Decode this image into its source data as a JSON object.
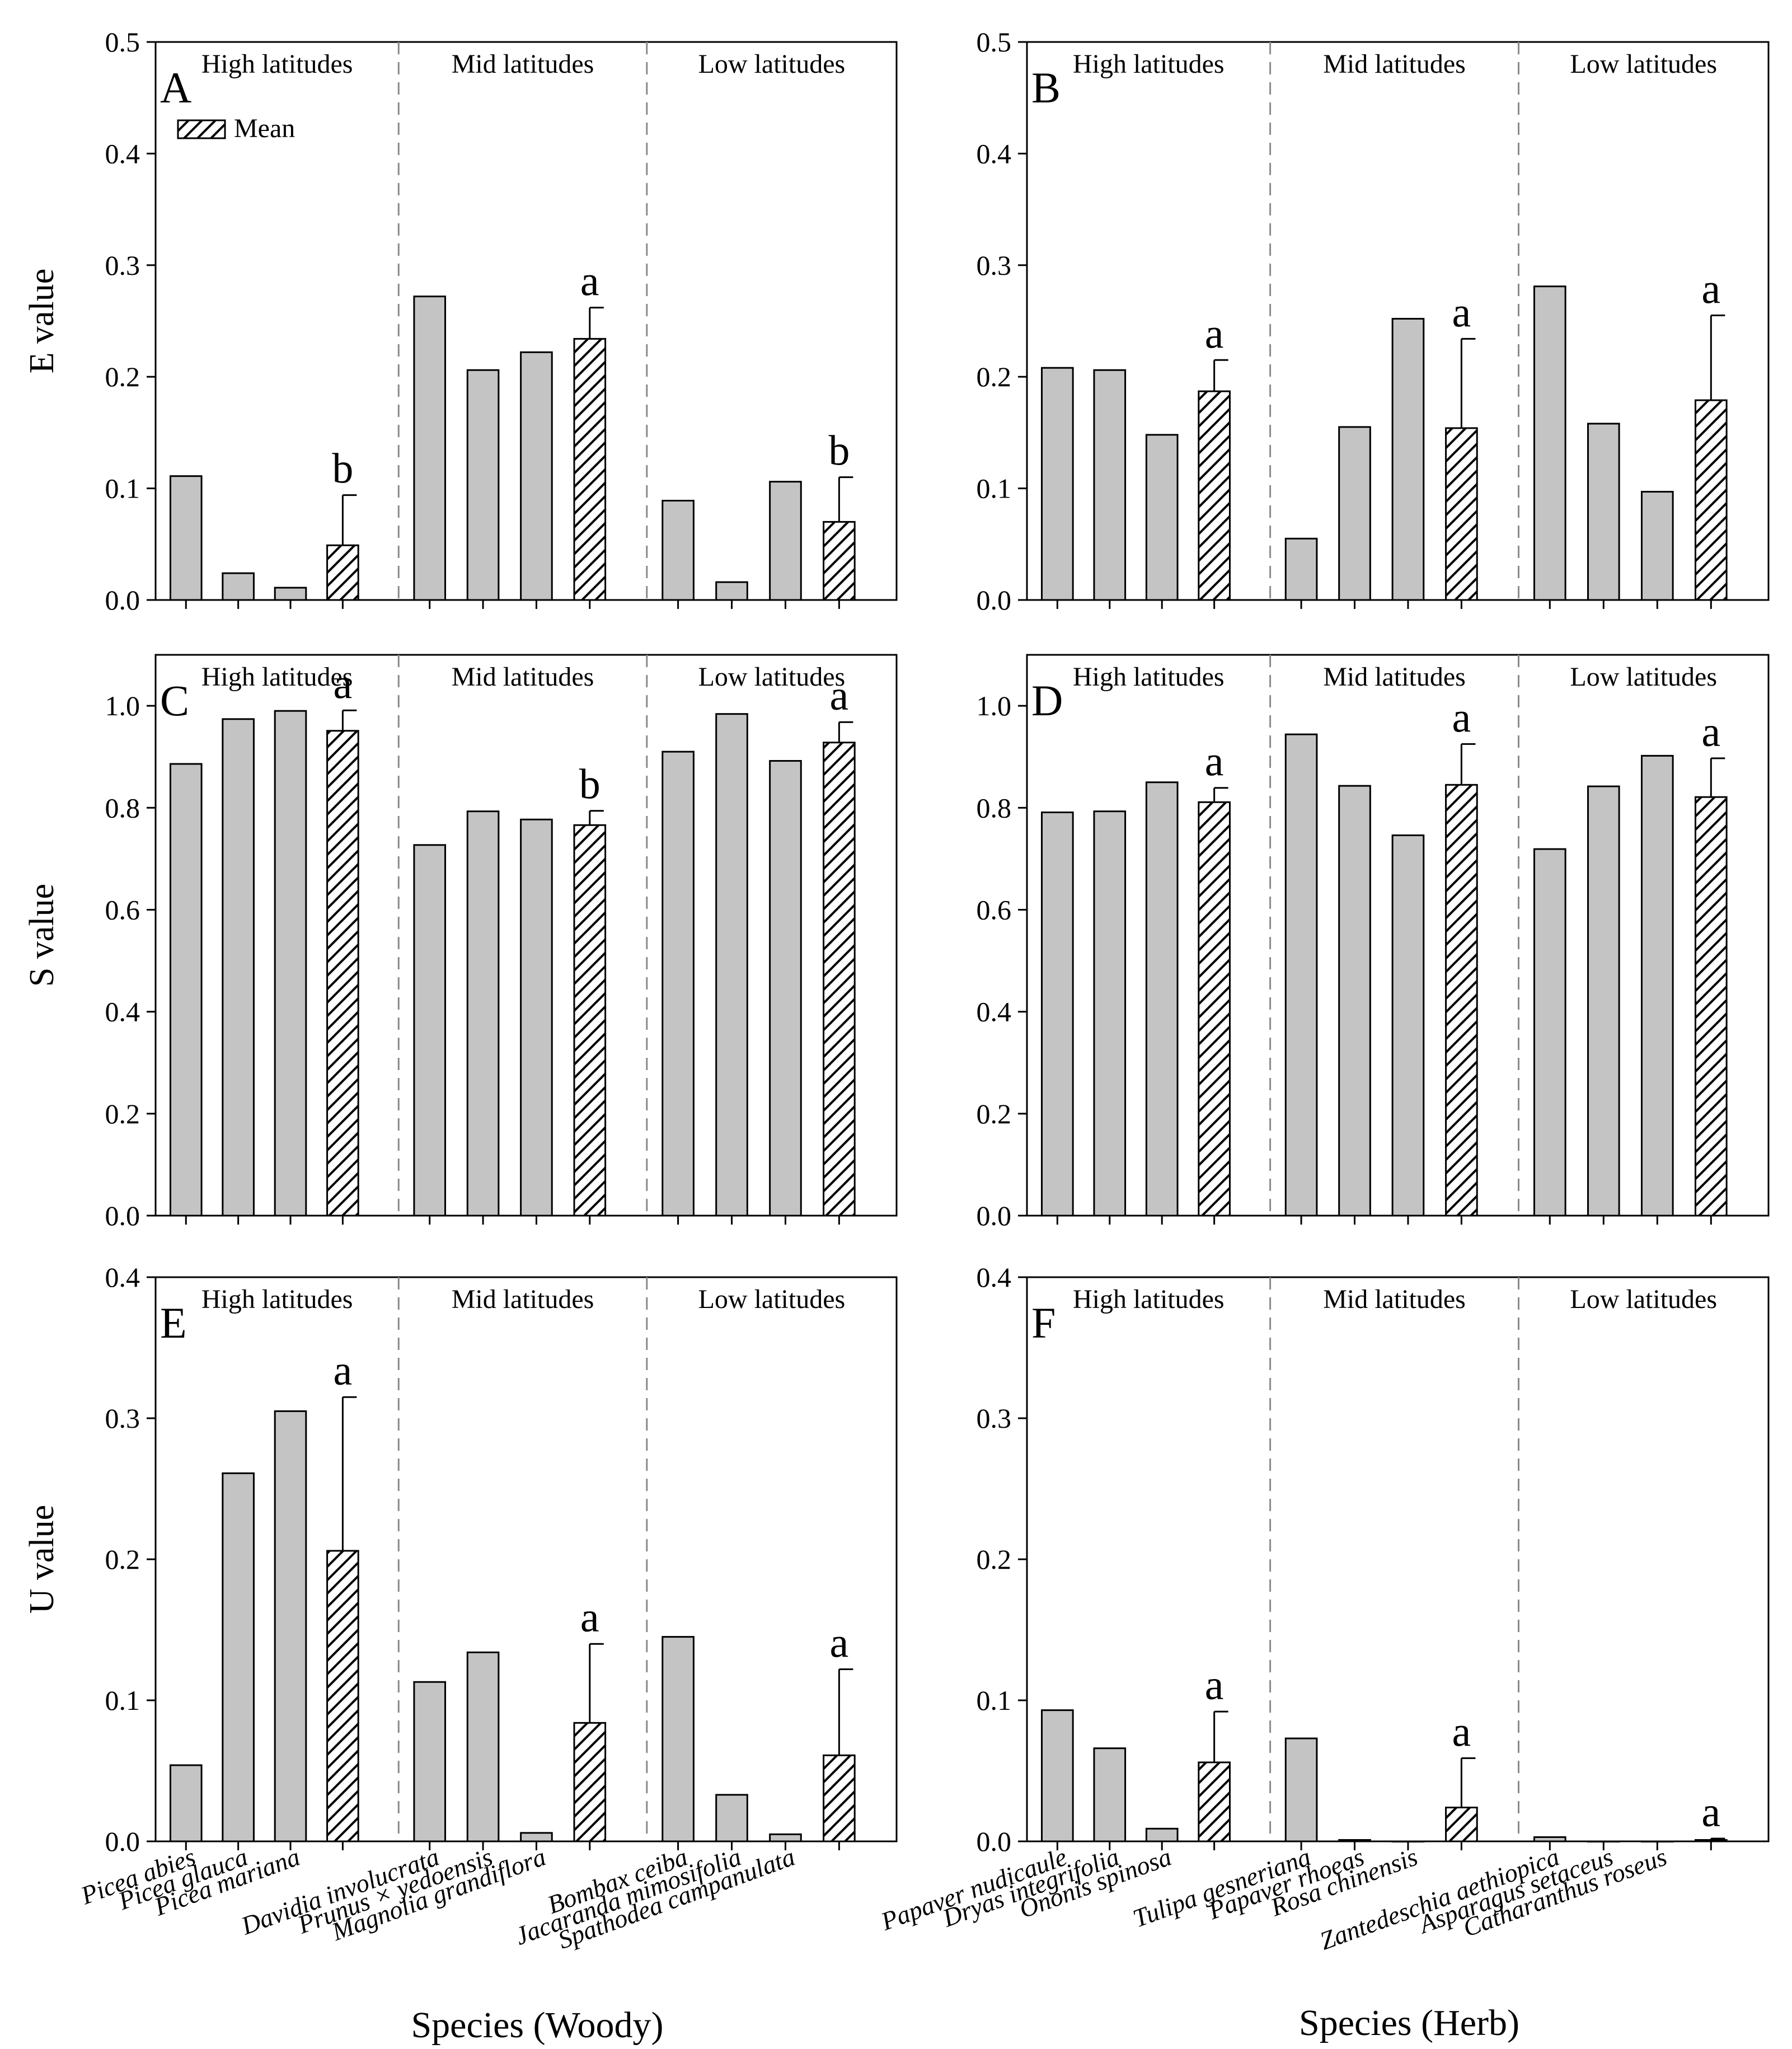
{
  "colors": {
    "bar_fill": "#c4c4c4",
    "mean_fill": "#ffffff",
    "hatch": "#000000",
    "divider": "#8a8a8a"
  },
  "legend_label": "Mean",
  "woody": {
    "xlabel": "Species (Woody)",
    "species": [
      "Picea abies",
      "Picea glauca",
      "Picea mariana",
      "Davidia involucrata",
      "Prunus × yedoensis",
      "Magnolia grandiflora",
      "Bombax ceiba",
      "Jacaranda mimosifolia",
      "Spathodea campanulata"
    ]
  },
  "herb": {
    "xlabel": "Species (Herb)",
    "species": [
      "Papaver nudicaule",
      "Dryas integrifolia",
      "Ononis spinosa",
      "Tulipa gesneriana",
      "Papaver rhoeas",
      "Rosa chinensis",
      "Zantedeschia aethiopica",
      "Asparagus setaceus",
      "Catharanthus roseus"
    ]
  },
  "chart_data": [
    {
      "type": "bar",
      "panel": "A",
      "ylabel": "E value",
      "ylim": [
        0,
        0.5
      ],
      "yticks": [
        "0.0",
        "0.1",
        "0.2",
        "0.3",
        "0.4",
        "0.5"
      ],
      "groups": [
        {
          "name": "High latitudes",
          "values": [
            0.111,
            0.024,
            0.011
          ],
          "mean": 0.049,
          "error": 0.045,
          "letter": "b"
        },
        {
          "name": "Mid latitudes",
          "values": [
            0.272,
            0.206,
            0.222
          ],
          "mean": 0.234,
          "error": 0.028,
          "letter": "a"
        },
        {
          "name": "Low latitudes",
          "values": [
            0.089,
            0.016,
            0.106
          ],
          "mean": 0.07,
          "error": 0.04,
          "letter": "b"
        }
      ]
    },
    {
      "type": "bar",
      "panel": "B",
      "ylabel": "",
      "ylim": [
        0,
        0.5
      ],
      "yticks": [
        "0.0",
        "0.1",
        "0.2",
        "0.3",
        "0.4",
        "0.5"
      ],
      "groups": [
        {
          "name": "High latitudes",
          "values": [
            0.208,
            0.206,
            0.148
          ],
          "mean": 0.187,
          "error": 0.028,
          "letter": "a"
        },
        {
          "name": "Mid latitudes",
          "values": [
            0.055,
            0.155,
            0.252
          ],
          "mean": 0.154,
          "error": 0.08,
          "letter": "a"
        },
        {
          "name": "Low latitudes",
          "values": [
            0.281,
            0.158,
            0.097
          ],
          "mean": 0.179,
          "error": 0.076,
          "letter": "a"
        }
      ]
    },
    {
      "type": "bar",
      "panel": "C",
      "ylabel": "S value",
      "ylim": [
        0,
        1.1
      ],
      "yticks": [
        "0.0",
        "0.2",
        "0.4",
        "0.6",
        "0.8",
        "1.0"
      ],
      "groups": [
        {
          "name": "High latitudes",
          "values": [
            0.886,
            0.974,
            0.99
          ],
          "mean": 0.951,
          "error": 0.04,
          "letter": "a"
        },
        {
          "name": "Mid latitudes",
          "values": [
            0.727,
            0.793,
            0.777
          ],
          "mean": 0.766,
          "error": 0.028,
          "letter": "b"
        },
        {
          "name": "Low latitudes",
          "values": [
            0.91,
            0.984,
            0.892
          ],
          "mean": 0.928,
          "error": 0.04,
          "letter": "a"
        }
      ]
    },
    {
      "type": "bar",
      "panel": "D",
      "ylabel": "",
      "ylim": [
        0,
        1.1
      ],
      "yticks": [
        "0.0",
        "0.2",
        "0.4",
        "0.6",
        "0.8",
        "1.0"
      ],
      "groups": [
        {
          "name": "High latitudes",
          "values": [
            0.791,
            0.793,
            0.85
          ],
          "mean": 0.811,
          "error": 0.028,
          "letter": "a"
        },
        {
          "name": "Mid latitudes",
          "values": [
            0.944,
            0.843,
            0.746
          ],
          "mean": 0.845,
          "error": 0.08,
          "letter": "a"
        },
        {
          "name": "Low latitudes",
          "values": [
            0.719,
            0.842,
            0.902
          ],
          "mean": 0.821,
          "error": 0.076,
          "letter": "a"
        }
      ]
    },
    {
      "type": "bar",
      "panel": "E",
      "ylabel": "U value",
      "ylim": [
        0,
        0.4
      ],
      "yticks": [
        "0.0",
        "0.1",
        "0.2",
        "0.3",
        "0.4"
      ],
      "groups": [
        {
          "name": "High latitudes",
          "values": [
            0.054,
            0.261,
            0.305
          ],
          "mean": 0.206,
          "error": 0.109,
          "letter": "a"
        },
        {
          "name": "Mid latitudes",
          "values": [
            0.113,
            0.134,
            0.006
          ],
          "mean": 0.084,
          "error": 0.056,
          "letter": "a"
        },
        {
          "name": "Low latitudes",
          "values": [
            0.145,
            0.033,
            0.005
          ],
          "mean": 0.061,
          "error": 0.061,
          "letter": "a"
        }
      ]
    },
    {
      "type": "bar",
      "panel": "F",
      "ylabel": "",
      "ylim": [
        0,
        0.4
      ],
      "yticks": [
        "0.0",
        "0.1",
        "0.2",
        "0.3",
        "0.4"
      ],
      "groups": [
        {
          "name": "High latitudes",
          "values": [
            0.093,
            0.066,
            0.009
          ],
          "mean": 0.056,
          "error": 0.036,
          "letter": "a"
        },
        {
          "name": "Mid latitudes",
          "values": [
            0.073,
            0.001,
            0.0
          ],
          "mean": 0.024,
          "error": 0.035,
          "letter": "a"
        },
        {
          "name": "Low latitudes",
          "values": [
            0.003,
            0.0,
            0.0
          ],
          "mean": 0.001,
          "error": 0.001,
          "letter": "a"
        }
      ]
    }
  ]
}
